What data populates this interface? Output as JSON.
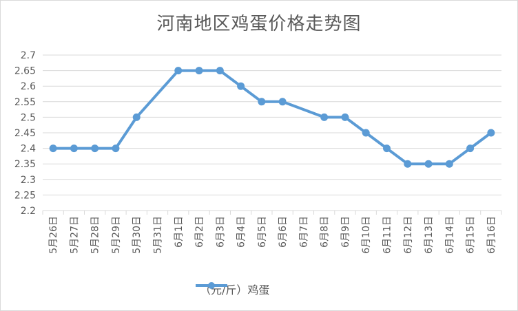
{
  "chart_data": {
    "type": "line",
    "title": "河南地区鸡蛋价格走势图",
    "categories": [
      "5月26日",
      "5月27日",
      "5月28日",
      "5月29日",
      "5月30日",
      "5月31日",
      "6月1日",
      "6月2日",
      "6月3日",
      "6月4日",
      "6月5日",
      "6月6日",
      "6月7日",
      "6月8日",
      "6月9日",
      "6月10日",
      "6月11日",
      "6月12日",
      "6月13日",
      "6月14日",
      "6月15日",
      "6月16日"
    ],
    "series": [
      {
        "name": "（元/斤）鸡蛋",
        "values": [
          2.4,
          2.4,
          2.4,
          2.4,
          2.5,
          null,
          2.65,
          2.65,
          2.65,
          2.6,
          2.55,
          2.55,
          null,
          2.5,
          2.5,
          2.45,
          2.4,
          2.35,
          2.35,
          2.35,
          2.4,
          2.45
        ]
      }
    ],
    "ylim": [
      2.2,
      2.7
    ],
    "yticks": [
      "2.2",
      "2.25",
      "2.3",
      "2.35",
      "2.4",
      "2.45",
      "2.5",
      "2.55",
      "2.6",
      "2.65",
      "2.7"
    ],
    "grid": true,
    "legend": "bottom",
    "colors": {
      "series": "#5b9bd5",
      "grid": "#d9d9d9",
      "text": "#595959"
    }
  }
}
